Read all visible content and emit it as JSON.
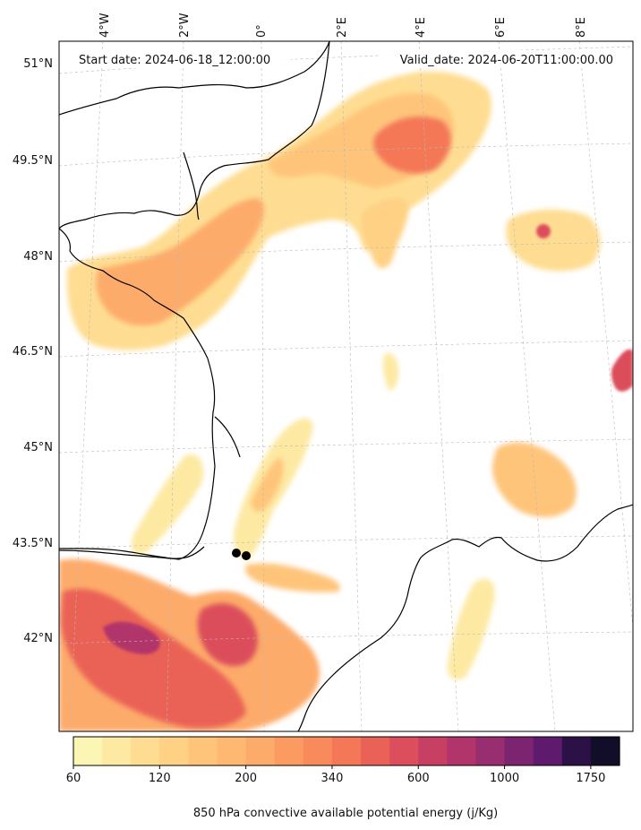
{
  "header": {
    "start_date": "Start date: 2024-06-18_12:00:00",
    "valid_date": "Valid_date: 2024-06-20T11:00:00.00"
  },
  "axes": {
    "lon_labels": [
      "4°W",
      "2°W",
      "0°",
      "2°E",
      "4°E",
      "6°E",
      "8°E"
    ],
    "lat_labels": [
      "51°N",
      "49.5°N",
      "48°N",
      "46.5°N",
      "45°N",
      "43.5°N",
      "42°N"
    ]
  },
  "colorbar": {
    "title": "850 hPa convective available potential energy (j/Kg)",
    "tick_labels": [
      "60",
      "120",
      "200",
      "340",
      "600",
      "1000",
      "1750"
    ],
    "colors": [
      "#fcf6b4",
      "#fde9a2",
      "#fedd92",
      "#fed185",
      "#fec57a",
      "#feb872",
      "#fdab6a",
      "#fb9b62",
      "#f98a5c",
      "#f47757",
      "#ea6257",
      "#dc4e5c",
      "#c73f63",
      "#b1356a",
      "#982d6f",
      "#7c2470",
      "#5e1a6d",
      "#2c1146",
      "#120d28"
    ]
  },
  "markers": {
    "icon": "location-dot",
    "count": 2
  }
}
